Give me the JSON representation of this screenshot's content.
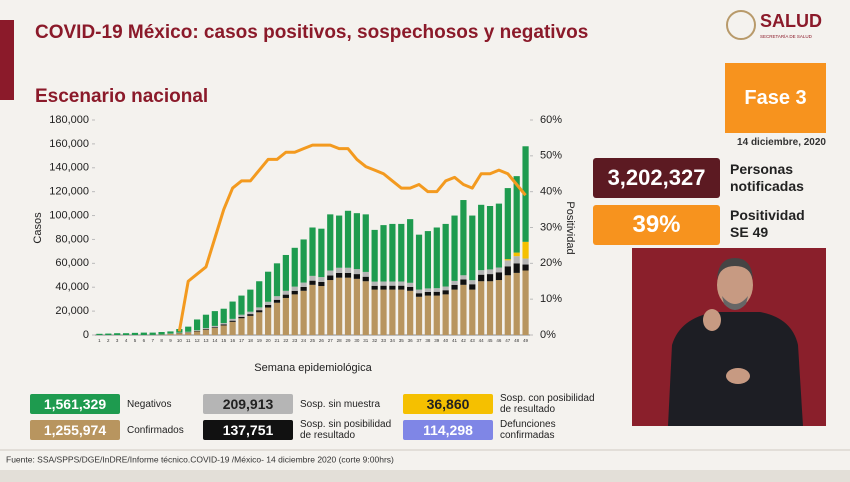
{
  "title": "COVID-19 México: casos positivos, sospechosos y negativos",
  "subtitle": "Escenario nacional",
  "logo": {
    "name": "SALUD",
    "sub": "SECRETARÍA DE SALUD"
  },
  "phase": "Fase 3",
  "date": "14 diciembre, 2020",
  "notified": {
    "value": "3,202,327",
    "label": "Personas notificadas"
  },
  "positivity": {
    "value": "39%",
    "label": "Positividad SE 49"
  },
  "defunciones": {
    "name": "Defunciones confirmadas",
    "total": "114,298",
    "color": "#7f86e6"
  },
  "source": "Fuente: SSA/SPPS/DGE/InDRE/Informe técnico.COVID-19 /México- 14 diciembre 2020 (corte 9:00hrs)",
  "chart_data": {
    "type": "bar",
    "x_label": "Semana epidemiológica",
    "y_label": "Casos",
    "y2_label": "Positividad",
    "grid": false,
    "categories": [
      "1",
      "2",
      "3",
      "4",
      "5",
      "6",
      "7",
      "8",
      "9",
      "10",
      "11",
      "12",
      "13",
      "14",
      "15",
      "16",
      "17",
      "18",
      "19",
      "20",
      "21",
      "22",
      "23",
      "24",
      "25",
      "26",
      "27",
      "28",
      "29",
      "30",
      "31",
      "32",
      "33",
      "34",
      "35",
      "36",
      "37",
      "38",
      "39",
      "40",
      "41",
      "42",
      "43",
      "44",
      "45",
      "46",
      "47",
      "48",
      "49"
    ],
    "ylim": [
      0,
      180000
    ],
    "yticks": [
      0,
      {
        "value": 20000,
        "label": "20,000"
      },
      {
        "value": 40000,
        "label": "40,000"
      },
      {
        "value": 60000,
        "label": "60,000"
      },
      {
        "value": 80000,
        "label": "80,000"
      },
      {
        "value": 100000,
        "label": "100,000"
      },
      {
        "value": 120000,
        "label": "120,000"
      },
      {
        "value": 140000,
        "label": "140,000"
      },
      {
        "value": 160000,
        "label": "160,000"
      },
      {
        "value": 180000,
        "label": "180,000"
      }
    ],
    "y2lim": [
      0,
      60
    ],
    "y2ticks": [
      {
        "value": 0,
        "label": "0%"
      },
      {
        "value": 10,
        "label": "10%"
      },
      {
        "value": 20,
        "label": "20%"
      },
      {
        "value": 30,
        "label": "30%"
      },
      {
        "value": 40,
        "label": "40%"
      },
      {
        "value": 50,
        "label": "50%"
      },
      {
        "value": 60,
        "label": "60%"
      }
    ],
    "series": [
      {
        "name": "Confirmados",
        "total": "1,255,974",
        "color": "#b8955f",
        "values": [
          0,
          0,
          0,
          0,
          0,
          0,
          100,
          300,
          900,
          1500,
          2000,
          3000,
          4500,
          6000,
          8000,
          11000,
          14000,
          16000,
          19000,
          23000,
          27000,
          31000,
          34000,
          37000,
          42000,
          41000,
          46000,
          48000,
          48000,
          47000,
          45000,
          38000,
          38000,
          38000,
          38000,
          37000,
          32000,
          33000,
          33000,
          34000,
          38000,
          42000,
          38000,
          45000,
          45000,
          46000,
          50000,
          52000,
          54000
        ]
      },
      {
        "name": "Sosp. sin posibilidad de resultado",
        "total": "137,751",
        "color": "#111111",
        "values": [
          0,
          0,
          0,
          0,
          0,
          0,
          0,
          0,
          100,
          200,
          300,
          400,
          500,
          600,
          800,
          1000,
          1200,
          1500,
          1800,
          2200,
          2500,
          2800,
          3000,
          3200,
          3500,
          3500,
          3800,
          4000,
          4000,
          4000,
          3800,
          3200,
          3300,
          3300,
          3300,
          3300,
          3000,
          3000,
          3200,
          3500,
          4000,
          4500,
          4500,
          5500,
          6000,
          6500,
          7500,
          8000,
          5000
        ]
      },
      {
        "name": "Sosp. sin muestra",
        "total": "209,913",
        "color": "#b5b5b5",
        "values": [
          0,
          0,
          0,
          0,
          0,
          0,
          0,
          100,
          200,
          300,
          400,
          600,
          800,
          1000,
          1200,
          1500,
          1800,
          2000,
          2300,
          2600,
          3000,
          3200,
          3500,
          3700,
          4000,
          4000,
          4200,
          4300,
          4300,
          4200,
          4000,
          3500,
          3500,
          3500,
          3500,
          3400,
          3000,
          3000,
          3000,
          3100,
          3300,
          3500,
          3400,
          3800,
          3900,
          4000,
          5000,
          6000,
          5000
        ]
      },
      {
        "name": "Sosp. con posibilidad de resultado",
        "total": "36,860",
        "color": "#f5c000",
        "values": [
          0,
          0,
          0,
          0,
          0,
          0,
          0,
          0,
          0,
          0,
          0,
          0,
          0,
          0,
          0,
          0,
          0,
          0,
          0,
          0,
          0,
          0,
          0,
          0,
          0,
          0,
          0,
          0,
          0,
          0,
          0,
          0,
          0,
          0,
          0,
          0,
          0,
          0,
          0,
          0,
          0,
          0,
          0,
          0,
          0,
          0,
          1000,
          3000,
          14000
        ]
      },
      {
        "name": "Negativos",
        "total": "1,561,329",
        "color": "#1e9b4f",
        "values": [
          1000,
          1200,
          1500,
          1500,
          1800,
          2000,
          1900,
          2100,
          1800,
          3000,
          4300,
          9000,
          11200,
          12400,
          12000,
          14500,
          16000,
          18500,
          21900,
          25200,
          27500,
          30000,
          32500,
          36100,
          40500,
          40500,
          47000,
          43700,
          47700,
          46800,
          48200,
          43300,
          47200,
          48200,
          48200,
          53300,
          46000,
          48000,
          50800,
          52400,
          54700,
          63000,
          54100,
          54700,
          53100,
          53500,
          59500,
          64000,
          80000
        ]
      },
      {
        "type": "line",
        "axis": "y2",
        "color": "#f39a1f",
        "values": [
          null,
          null,
          null,
          null,
          null,
          null,
          null,
          null,
          null,
          1,
          15,
          17,
          19,
          27,
          35,
          41,
          43,
          43,
          46,
          49,
          49,
          51,
          51,
          52,
          53,
          53,
          53,
          52,
          52,
          49,
          47,
          46,
          45,
          43,
          41,
          41,
          42,
          40,
          40,
          43,
          44,
          42,
          41,
          45,
          45,
          46,
          45,
          42,
          39
        ]
      }
    ]
  }
}
